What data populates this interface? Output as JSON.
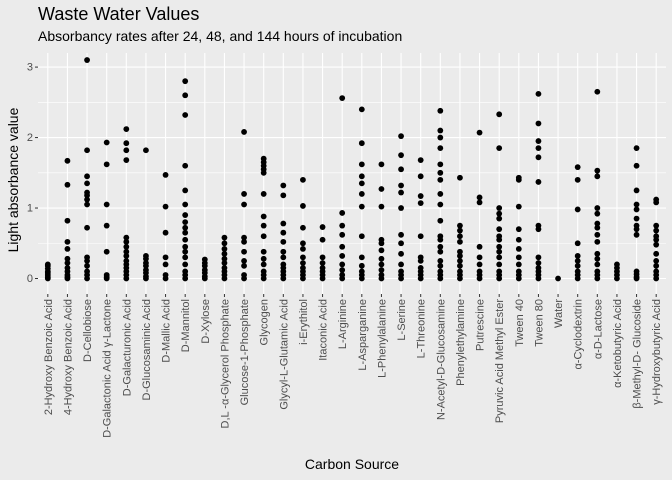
{
  "chart_data": {
    "type": "scatter",
    "title": "Waste Water Values",
    "subtitle": "Absorbancy rates after 24, 48, and 144 hours of incubation",
    "xlabel": "Carbon Source",
    "ylabel": "Light absorbance value",
    "ylim": [
      -0.22,
      3.2
    ],
    "yticks": [
      0,
      1,
      2,
      3
    ],
    "grid": true,
    "categories": [
      "2-Hydroxy Benzoic Acid",
      "4-Hydroxy Benzoic Acid",
      "D-Cellobiose",
      "D-Galactonic Acid γ-Lactone",
      "D-Galacturonic Acid",
      "D-Glucosaminic Acid",
      "D-Mallic Acid",
      "D-Mannitol",
      "D-Xylose",
      "D,L -α-Glycerol Phosphate",
      "Glucose-1-Phosphate",
      "Glycogen",
      "Glycyl-L-Glutamic Acid",
      "i-Erythitol",
      "Itaconic Acid",
      "L-Arginine",
      "L-Asparganine",
      "L-Phenylalanine",
      "L-Serine",
      "L-Threonine",
      "N-Acetyl-D-Glucosamine",
      "Phenylethylamine",
      "Putrescine",
      "Pyruvic Acid Methyl Ester",
      "Tween 40",
      "Tween 80",
      "Water",
      "α-Cyclodextrin",
      "α-D-Lactose",
      "α-Ketobutyric Acid",
      "β-Methyl-D- Glucoside",
      "γ-Hydroxybutyric Acid"
    ],
    "points": [
      [
        0.0,
        0.02,
        0.05,
        0.08,
        0.1,
        0.14,
        0.18,
        0.2
      ],
      [
        0.0,
        0.02,
        0.05,
        0.1,
        0.15,
        0.22,
        0.28,
        0.42,
        0.52,
        0.82,
        1.33,
        1.67
      ],
      [
        0.0,
        0.05,
        0.1,
        0.18,
        0.25,
        0.3,
        0.72,
        1.05,
        1.12,
        1.18,
        1.22,
        1.35,
        1.45,
        1.82,
        3.1
      ],
      [
        0.0,
        0.02,
        0.05,
        0.38,
        0.75,
        1.05,
        1.62,
        1.93
      ],
      [
        0.0,
        0.05,
        0.1,
        0.15,
        0.2,
        0.25,
        0.32,
        0.38,
        0.45,
        0.52,
        0.58,
        1.68,
        1.82,
        1.92,
        2.12
      ],
      [
        0.0,
        0.03,
        0.08,
        0.12,
        0.18,
        0.22,
        0.28,
        0.32,
        1.82
      ],
      [
        0.0,
        0.05,
        0.2,
        0.3,
        0.65,
        1.02,
        1.47
      ],
      [
        0.0,
        0.05,
        0.1,
        0.2,
        0.3,
        0.38,
        0.45,
        0.55,
        0.65,
        0.72,
        0.8,
        0.9,
        1.05,
        1.25,
        1.6,
        2.32,
        2.6,
        2.8
      ],
      [
        0.0,
        0.03,
        0.08,
        0.12,
        0.18,
        0.22,
        0.27
      ],
      [
        0.0,
        0.05,
        0.1,
        0.15,
        0.22,
        0.28,
        0.35,
        0.42,
        0.5,
        0.58
      ],
      [
        0.0,
        0.05,
        0.18,
        0.25,
        0.38,
        0.52,
        0.58,
        1.05,
        1.2,
        2.08
      ],
      [
        0.0,
        0.05,
        0.1,
        0.2,
        0.28,
        0.38,
        0.6,
        0.75,
        0.88,
        1.2,
        1.5,
        1.55,
        1.6,
        1.65,
        1.7
      ],
      [
        0.0,
        0.05,
        0.1,
        0.15,
        0.2,
        0.3,
        0.38,
        0.52,
        0.65,
        0.78,
        1.18,
        1.32
      ],
      [
        0.0,
        0.05,
        0.1,
        0.15,
        0.22,
        0.3,
        0.42,
        0.5,
        0.72,
        1.03,
        1.4
      ],
      [
        0.0,
        0.05,
        0.1,
        0.15,
        0.22,
        0.3,
        0.55,
        0.73
      ],
      [
        0.0,
        0.05,
        0.12,
        0.2,
        0.32,
        0.45,
        0.62,
        0.75,
        0.93,
        2.56
      ],
      [
        0.0,
        0.05,
        0.1,
        0.18,
        0.3,
        0.6,
        1.02,
        1.2,
        1.35,
        1.45,
        1.62,
        1.92,
        2.4
      ],
      [
        0.0,
        0.05,
        0.12,
        0.2,
        0.28,
        0.4,
        0.5,
        0.55,
        1.02,
        1.27,
        1.62
      ],
      [
        0.0,
        0.05,
        0.1,
        0.2,
        0.35,
        0.5,
        0.62,
        1.0,
        1.22,
        1.32,
        1.55,
        1.75,
        2.02
      ],
      [
        0.0,
        0.05,
        0.1,
        0.15,
        0.25,
        0.3,
        0.6,
        1.07,
        1.17,
        1.45,
        1.68
      ],
      [
        0.0,
        0.05,
        0.1,
        0.18,
        0.25,
        0.38,
        0.45,
        0.55,
        0.6,
        0.82,
        1.05,
        1.2,
        1.4,
        1.5,
        1.62,
        1.85,
        2.0,
        2.1,
        2.38
      ],
      [
        0.0,
        0.05,
        0.1,
        0.18,
        0.25,
        0.32,
        0.38,
        0.52,
        0.6,
        0.68,
        0.75,
        1.43
      ],
      [
        0.0,
        0.05,
        0.1,
        0.2,
        0.3,
        0.45,
        1.08,
        1.15,
        2.07
      ],
      [
        0.0,
        0.05,
        0.1,
        0.2,
        0.3,
        0.38,
        0.45,
        0.55,
        0.6,
        0.7,
        0.85,
        0.92,
        1.0,
        1.85,
        2.33
      ],
      [
        0.0,
        0.05,
        0.1,
        0.2,
        0.3,
        0.42,
        0.55,
        0.7,
        1.02,
        1.4,
        1.43
      ],
      [
        0.0,
        0.05,
        0.1,
        0.15,
        0.22,
        0.3,
        0.7,
        0.75,
        1.37,
        1.72,
        1.85,
        1.95,
        2.2,
        2.62
      ],
      [
        0.0
      ],
      [
        0.0,
        0.05,
        0.1,
        0.18,
        0.25,
        0.32,
        0.5,
        0.98,
        1.4,
        1.58
      ],
      [
        0.0,
        0.05,
        0.1,
        0.2,
        0.28,
        0.35,
        0.52,
        0.62,
        0.72,
        0.78,
        0.92,
        1.0,
        1.45,
        1.53,
        2.65
      ],
      [
        0.0,
        0.05,
        0.1,
        0.15,
        0.2
      ],
      [
        0.0,
        0.02,
        0.06,
        0.1,
        0.62,
        0.7,
        0.75,
        0.85,
        0.98,
        1.05,
        1.25,
        1.6,
        1.85
      ],
      [
        0.0,
        0.05,
        0.1,
        0.18,
        0.25,
        0.35,
        0.48,
        0.55,
        0.6,
        0.68,
        0.75,
        1.08,
        1.12
      ]
    ]
  }
}
